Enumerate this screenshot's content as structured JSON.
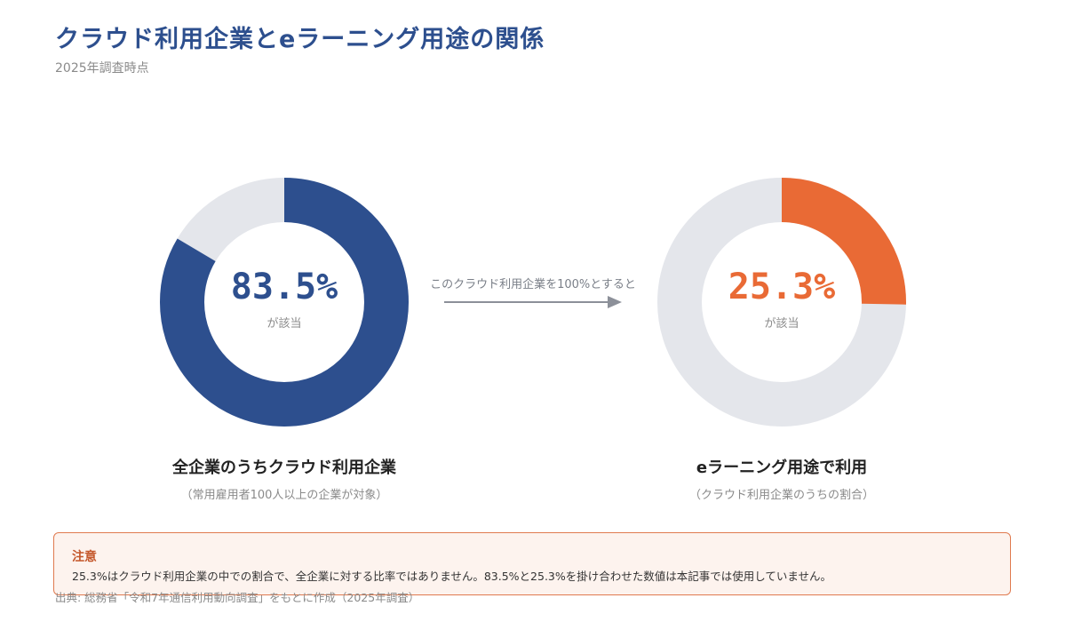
{
  "title": "クラウド利用企業とeラーニング用途の関係",
  "subtitle": "2025年調査時点",
  "colors": {
    "primary": "#2d4f8e",
    "accent": "#e96a35",
    "track": "#e4e6eb",
    "arrow": "#8c9099"
  },
  "chart_data": [
    {
      "type": "pie",
      "value": 83.5,
      "value_text": "83.5%",
      "center_caption": "が該当",
      "label": "全企業のうちクラウド利用企業",
      "sublabel": "（常用雇用者100人以上の企業が対象）",
      "color": "#2d4f8e"
    },
    {
      "type": "pie",
      "value": 25.3,
      "value_text": "25.3%",
      "center_caption": "が該当",
      "label": "eラーニング用途で利用",
      "sublabel": "（クラウド利用企業のうちの割合）",
      "color": "#e96a35"
    }
  ],
  "arrow_text": "このクラウド利用企業を100%とすると",
  "note": {
    "title": "注意",
    "text": "25.3%はクラウド利用企業の中での割合で、全企業に対する比率ではありません。83.5%と25.3%を掛け合わせた数値は本記事では使用していません。"
  },
  "source": "出典: 総務省「令和7年通信利用動向調査」をもとに作成（2025年調査）"
}
